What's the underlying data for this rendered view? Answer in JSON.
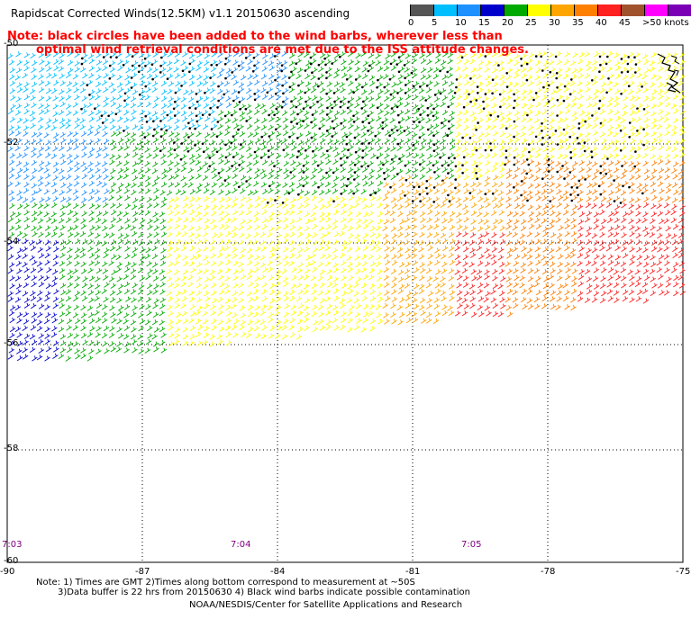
{
  "title": "Rapidscat Corrected Winds(12.5KM) v1.1 20150630 ascending",
  "note": {
    "line1": "Note: black circles have been added to the wind barbs, wherever less than",
    "line2": "optimal wind retrieval conditions are met due to the ISS attitude changes."
  },
  "legend": {
    "colors": [
      "#555555",
      "#00bfff",
      "#1e90ff",
      "#0000cd",
      "#00aa00",
      "#ffff00",
      "#ffa500",
      "#ff7f00",
      "#ff2020",
      "#a0522d",
      "#ff00ff",
      "#7b00b5"
    ],
    "ticks": [
      "0",
      "5",
      "10",
      "15",
      "20",
      "25",
      "30",
      "35",
      "40",
      "45",
      ">50 knots"
    ]
  },
  "axes": {
    "lon_labels": [
      "-90",
      "-87",
      "-84",
      "-81",
      "-78",
      "-75"
    ],
    "lat_labels": [
      "-50",
      "-52",
      "-54",
      "-56",
      "-58",
      "-60"
    ]
  },
  "times": [
    "7:03",
    "7:04",
    "7:05"
  ],
  "footer": {
    "line1": "Note: 1) Times are GMT 2)Times along bottom correspond to measurement at ~50S",
    "line2": "3)Data buffer is 22 hrs from 20150630 4) Black wind barbs indicate possible contamination",
    "line3": "NOAA/NESDIS/Center for Satellite Applications and Research"
  }
}
